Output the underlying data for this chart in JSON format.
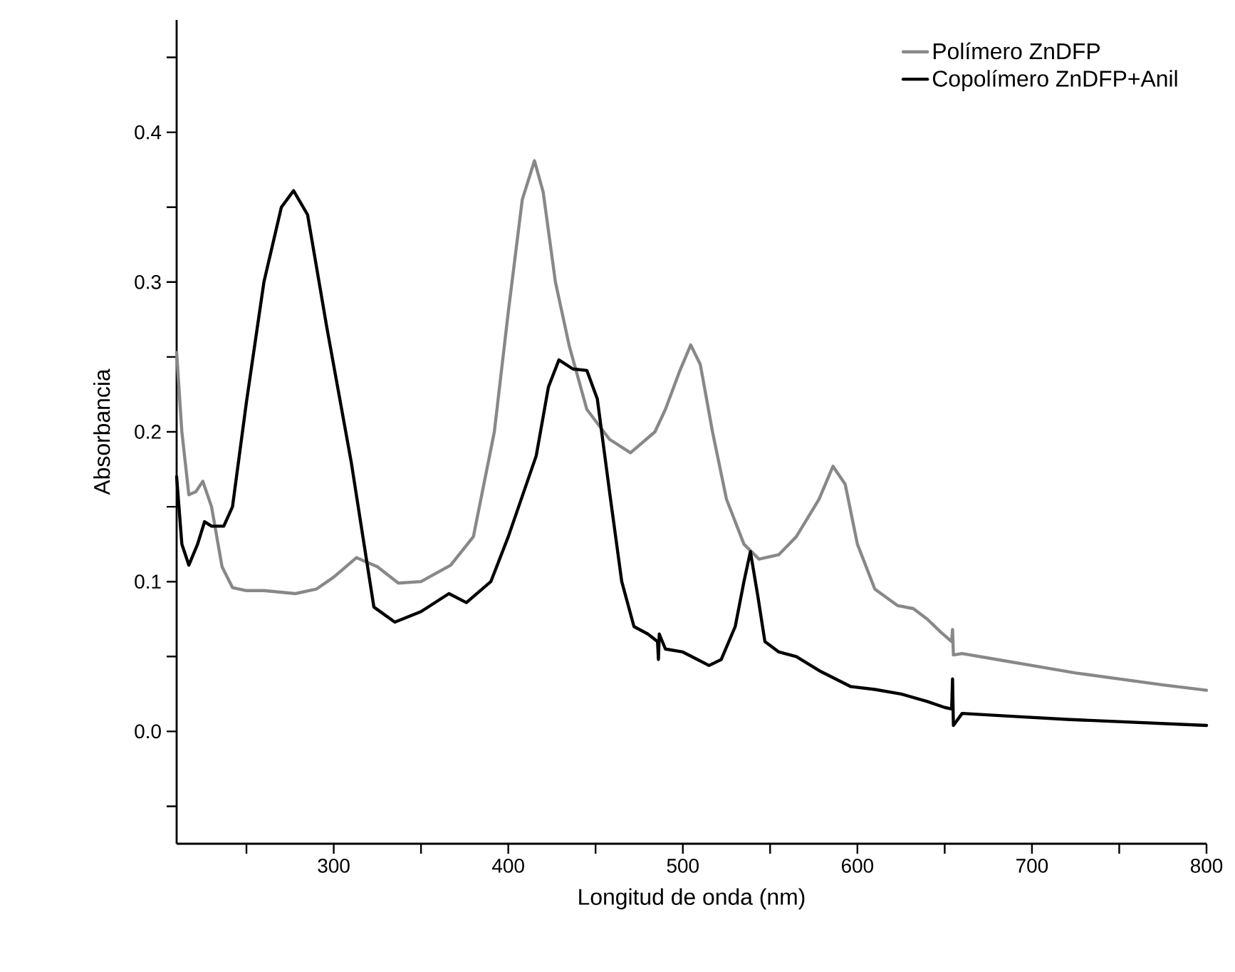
{
  "chart_data": {
    "type": "line",
    "xlabel": "Longitud de onda (nm)",
    "ylabel": "Absorbancia",
    "xlim": [
      210,
      800
    ],
    "ylim": [
      -0.075,
      0.475
    ],
    "xticks": [
      {
        "value": 250,
        "label": null
      },
      300,
      {
        "value": 350,
        "label": null
      },
      400,
      {
        "value": 450,
        "label": null
      },
      500,
      {
        "value": 550,
        "label": null
      },
      600,
      {
        "value": 650,
        "label": null
      },
      700,
      {
        "value": 750,
        "label": null
      },
      800
    ],
    "yticks": [
      {
        "value": -0.05,
        "label": null
      },
      {
        "value": 0,
        "label": "0.0"
      },
      {
        "value": 0.05,
        "label": null
      },
      0.1,
      {
        "value": 0.15,
        "label": null
      },
      0.2,
      {
        "value": 0.25,
        "label": null
      },
      0.3,
      {
        "value": 0.35,
        "label": null
      },
      0.4,
      {
        "value": 0.45,
        "label": null
      }
    ],
    "legend": "top right",
    "grid": false,
    "marker": "none",
    "line_style": "solid",
    "series": [
      {
        "name": "Polímero ZnDFP",
        "color": "#888888",
        "x": [
          210,
          213,
          217,
          221,
          225,
          230,
          236,
          242,
          250,
          260,
          278,
          290,
          300,
          313,
          325,
          337,
          350,
          367,
          380,
          392,
          400,
          408,
          415,
          420,
          427,
          435,
          445,
          458,
          470,
          484,
          490,
          498,
          504.5,
          510,
          517,
          525,
          535,
          543.6,
          555,
          565,
          578,
          586,
          593,
          600,
          610,
          623,
          632,
          640,
          648,
          654,
          654.5,
          655,
          660,
          680,
          700,
          725,
          750,
          775,
          800
        ],
        "values": [
          0.253,
          0.2,
          0.158,
          0.16,
          0.167,
          0.15,
          0.11,
          0.096,
          0.094,
          0.094,
          0.092,
          0.095,
          0.103,
          0.116,
          0.11,
          0.099,
          0.1,
          0.111,
          0.13,
          0.2,
          0.28,
          0.355,
          0.381,
          0.36,
          0.3,
          0.257,
          0.215,
          0.195,
          0.186,
          0.2,
          0.215,
          0.24,
          0.258,
          0.245,
          0.2,
          0.155,
          0.125,
          0.115,
          0.118,
          0.13,
          0.155,
          0.177,
          0.165,
          0.125,
          0.095,
          0.084,
          0.082,
          0.075,
          0.066,
          0.06,
          0.068,
          0.051,
          0.052,
          0.048,
          0.044,
          0.039,
          0.035,
          0.031,
          0.0275
        ]
      },
      {
        "name": "Copolímero ZnDFP+Anil",
        "color": "#000000",
        "x": [
          210,
          213,
          217,
          222,
          226,
          230,
          237,
          242,
          250,
          260,
          270,
          277,
          285,
          296,
          310,
          323,
          335,
          350,
          366,
          376,
          390,
          400,
          416,
          423,
          429,
          437,
          445,
          451,
          458,
          465,
          472,
          480,
          485.5,
          486,
          486.5,
          490,
          500,
          505,
          515,
          522,
          530,
          535,
          538.7,
          543,
          547,
          555,
          565,
          579,
          596,
          610,
          625,
          640,
          650,
          654,
          654.5,
          655,
          660,
          690,
          720,
          760,
          800
        ],
        "values": [
          0.17,
          0.125,
          0.111,
          0.125,
          0.14,
          0.137,
          0.137,
          0.15,
          0.22,
          0.3,
          0.35,
          0.361,
          0.345,
          0.27,
          0.18,
          0.083,
          0.073,
          0.08,
          0.092,
          0.086,
          0.1,
          0.13,
          0.184,
          0.23,
          0.248,
          0.242,
          0.241,
          0.222,
          0.16,
          0.1,
          0.07,
          0.065,
          0.06,
          0.048,
          0.065,
          0.055,
          0.053,
          0.05,
          0.044,
          0.048,
          0.07,
          0.1,
          0.12,
          0.09,
          0.06,
          0.053,
          0.05,
          0.04,
          0.03,
          0.028,
          0.025,
          0.02,
          0.016,
          0.015,
          0.035,
          0.004,
          0.012,
          0.01,
          0.008,
          0.006,
          0.004
        ]
      }
    ]
  }
}
